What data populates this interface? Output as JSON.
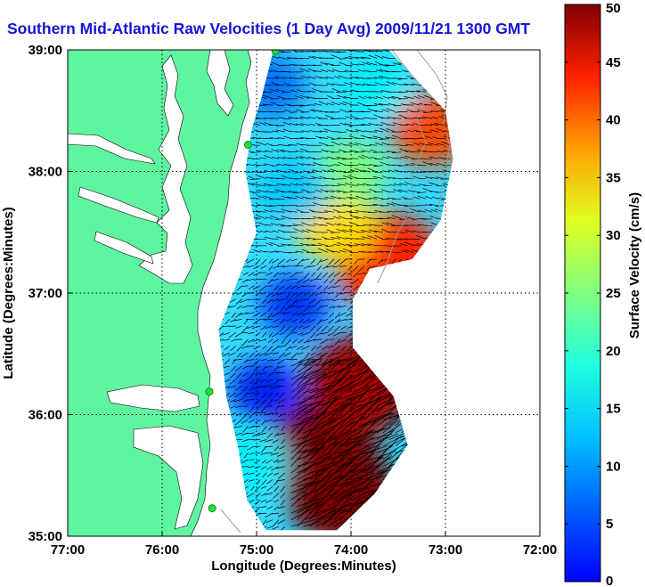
{
  "title": "Southern Mid-Atlantic Raw Velocities (1 Day Avg) 2009/11/21 1300 GMT",
  "chart_data": {
    "type": "heatmap",
    "title": "Southern Mid-Atlantic Raw Velocities (1 Day Avg) 2009/11/21 1300 GMT",
    "xlabel": "Longitude (Degrees:Minutes)",
    "ylabel": "Latitude (Degrees:Minutes)",
    "xlim": [
      -77,
      -72
    ],
    "ylim": [
      35,
      39
    ],
    "x_ticks": [
      {
        "value": -77,
        "label": "77:00"
      },
      {
        "value": -76,
        "label": "76:00"
      },
      {
        "value": -75,
        "label": "75:00"
      },
      {
        "value": -74,
        "label": "74:00"
      },
      {
        "value": -73,
        "label": "73:00"
      },
      {
        "value": -72,
        "label": "72:00"
      }
    ],
    "y_ticks": [
      {
        "value": 35,
        "label": "35:00"
      },
      {
        "value": 36,
        "label": "36:00"
      },
      {
        "value": 37,
        "label": "37:00"
      },
      {
        "value": 38,
        "label": "38:00"
      },
      {
        "value": 39,
        "label": "39:00"
      }
    ],
    "grid": true,
    "colorbar": {
      "label": "Surface Velocity (cm/s)",
      "range": [
        0,
        50
      ],
      "ticks": [
        0,
        5,
        10,
        15,
        20,
        25,
        30,
        35,
        40,
        45,
        50
      ],
      "colormap": "jet"
    },
    "colors": {
      "land": "#5ff5a0",
      "water_outside_coverage": "#ffffff",
      "title": "#1515d8"
    },
    "stations": [
      {
        "lon": -74.8,
        "lat": 38.99
      },
      {
        "lon": -75.09,
        "lat": 38.22
      },
      {
        "lon": -75.5,
        "lat": 36.19
      },
      {
        "lon": -75.47,
        "lat": 35.23
      }
    ],
    "coverage_polygon": [
      [
        -74.9,
        39.0
      ],
      [
        -73.6,
        39.0
      ],
      [
        -73.0,
        38.5
      ],
      [
        -72.92,
        38.1
      ],
      [
        -73.05,
        37.6
      ],
      [
        -73.35,
        37.28
      ],
      [
        -73.8,
        37.2
      ],
      [
        -73.98,
        36.95
      ],
      [
        -73.98,
        36.55
      ],
      [
        -73.55,
        36.15
      ],
      [
        -73.4,
        35.75
      ],
      [
        -73.75,
        35.35
      ],
      [
        -74.15,
        35.05
      ],
      [
        -74.9,
        35.05
      ],
      [
        -75.1,
        35.3
      ],
      [
        -75.2,
        35.75
      ],
      [
        -75.32,
        36.15
      ],
      [
        -75.4,
        36.7
      ],
      [
        -75.15,
        37.2
      ],
      [
        -75.0,
        37.5
      ],
      [
        -75.12,
        38.0
      ],
      [
        -75.05,
        38.35
      ],
      [
        -74.95,
        38.6
      ],
      [
        -74.82,
        39.0
      ]
    ],
    "velocity_hotspots": [
      {
        "lon": -74.3,
        "lat": 35.7,
        "speed": 50
      },
      {
        "lon": -73.9,
        "lat": 36.25,
        "speed": 48
      },
      {
        "lon": -74.1,
        "lat": 35.35,
        "speed": 50
      },
      {
        "lon": -73.6,
        "lat": 37.25,
        "speed": 42
      },
      {
        "lon": -73.15,
        "lat": 38.35,
        "speed": 40
      },
      {
        "lon": -74.15,
        "lat": 37.55,
        "speed": 33
      },
      {
        "lon": -74.0,
        "lat": 38.0,
        "speed": 25
      },
      {
        "lon": -74.6,
        "lat": 37.85,
        "speed": 16
      },
      {
        "lon": -74.6,
        "lat": 36.9,
        "speed": 9
      },
      {
        "lon": -74.9,
        "lat": 36.2,
        "speed": 8
      },
      {
        "lon": -74.85,
        "lat": 38.7,
        "speed": 12
      },
      {
        "lon": -73.7,
        "lat": 38.7,
        "speed": 18
      },
      {
        "lon": -75.05,
        "lat": 35.6,
        "speed": 18
      }
    ]
  }
}
